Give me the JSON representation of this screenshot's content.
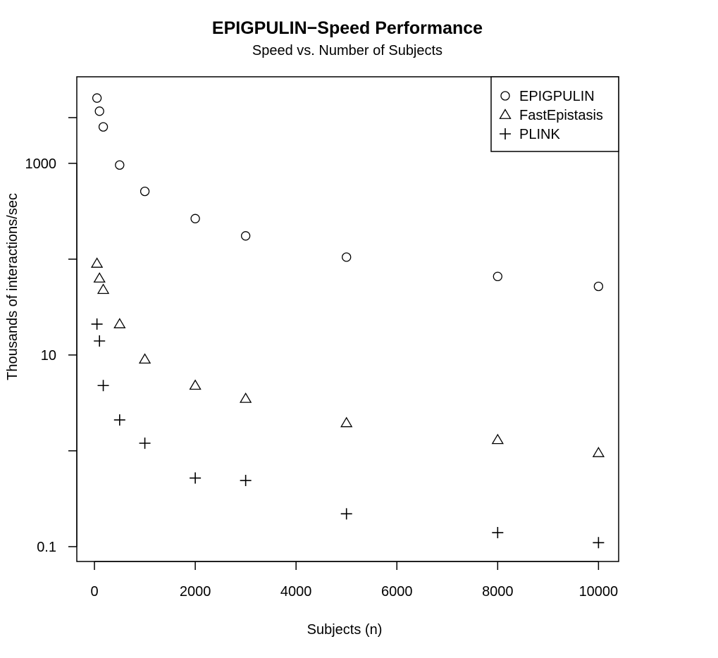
{
  "chart_data": {
    "type": "scatter",
    "title": "EPIGPULIN−Speed Performance",
    "subtitle": "Speed vs. Number of Subjects",
    "xlabel": "Subjects (n)",
    "ylabel": "Thousands of interactions/sec",
    "xlim": [
      -350,
      10400
    ],
    "ylim": [
      0.07,
      8000
    ],
    "yscale": "log",
    "x_ticks": [
      0,
      2000,
      4000,
      6000,
      8000,
      10000
    ],
    "y_ticks": [
      0.1,
      1,
      10,
      100,
      1000
    ],
    "y_tick_labels": [
      "0.1",
      "",
      "10",
      "",
      "1000"
    ],
    "grid": false,
    "legend_position": "top-right",
    "series": [
      {
        "name": "EPIGPULIN",
        "marker": "circle",
        "x": [
          50,
          100,
          175,
          500,
          1000,
          2000,
          3000,
          5000,
          8000,
          10000
        ],
        "y": [
          4800,
          3500,
          2400,
          960,
          510,
          265,
          175,
          105,
          66,
          52
        ]
      },
      {
        "name": "FastEpistasis",
        "marker": "triangle",
        "x": [
          50,
          100,
          175,
          500,
          1000,
          2000,
          3000,
          5000,
          8000,
          10000
        ],
        "y": [
          90,
          63,
          48,
          21,
          9,
          4.8,
          3.5,
          1.95,
          1.3,
          0.95
        ]
      },
      {
        "name": "PLINK",
        "marker": "plus",
        "x": [
          50,
          100,
          175,
          500,
          1000,
          2000,
          3000,
          5000,
          8000,
          10000
        ],
        "y": [
          21,
          14,
          4.8,
          2.1,
          1.2,
          0.52,
          0.49,
          0.22,
          0.14,
          0.11
        ]
      }
    ]
  }
}
